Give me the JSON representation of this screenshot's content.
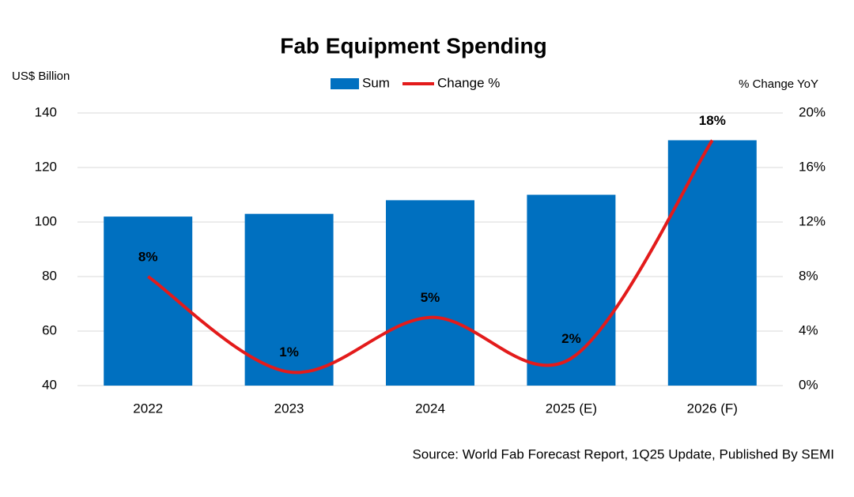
{
  "chart_data": {
    "type": "bar_line",
    "title": "Fab Equipment Spending",
    "y_label": "US$ Billion",
    "y2_label": "% Change YoY",
    "source": "Source: World Fab Forecast Report, 1Q25 Update, Published By SEMI",
    "categories": [
      "2022",
      "2023",
      "2024",
      "2025 (E)",
      "2026 (F)"
    ],
    "series": [
      {
        "name": "Sum",
        "type": "bar",
        "color": "#0070c0",
        "values": [
          102,
          103,
          108,
          110,
          130
        ]
      },
      {
        "name": "Change %",
        "type": "line",
        "axis": "y2",
        "color": "#e31b1b",
        "values": [
          8,
          1,
          5,
          2,
          18
        ],
        "value_labels": [
          "8%",
          "1%",
          "5%",
          "2%",
          "18%"
        ]
      }
    ],
    "ylim": [
      40,
      140
    ],
    "yticks": [
      40,
      60,
      80,
      100,
      120,
      140
    ],
    "y2lim": [
      0,
      20
    ],
    "y2ticks": [
      {
        "value": 0,
        "label": "0%"
      },
      {
        "value": 4,
        "label": "4%"
      },
      {
        "value": 8,
        "label": "8%"
      },
      {
        "value": 12,
        "label": "12%"
      },
      {
        "value": 16,
        "label": "16%"
      },
      {
        "value": 20,
        "label": "20%"
      }
    ],
    "grid": true,
    "legend": "top"
  }
}
